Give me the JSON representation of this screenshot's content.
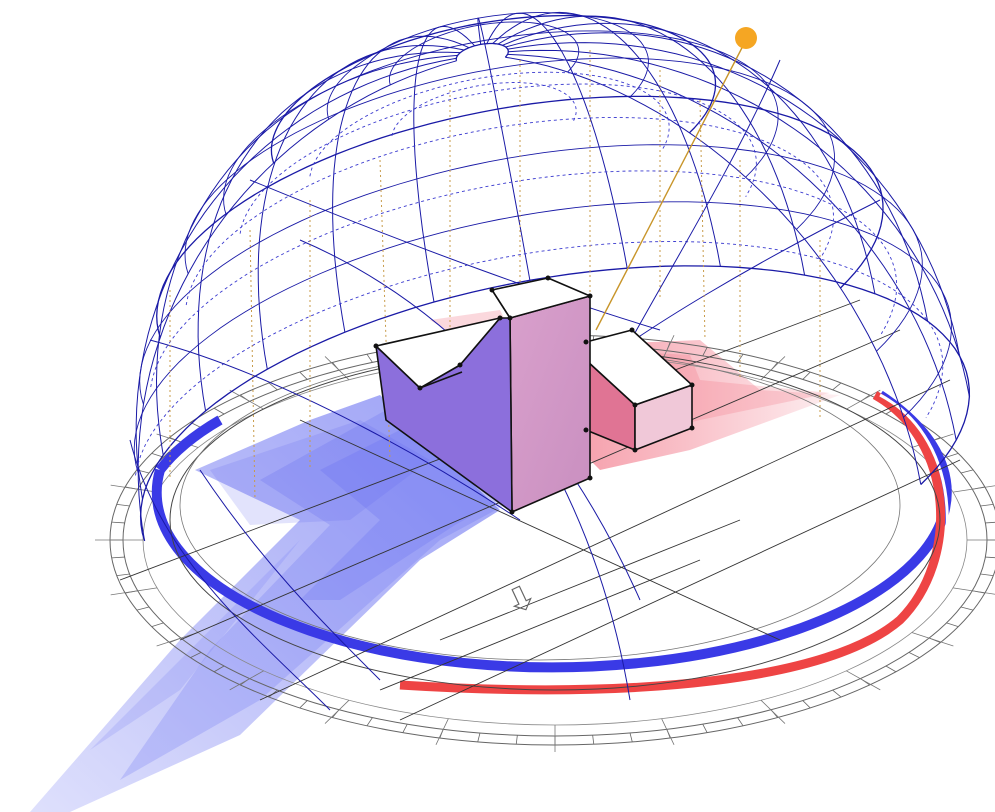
{
  "colors": {
    "background": "#ffffff",
    "sky_dome_grid": "#1a1aa6",
    "dashed_guides": "#3a3acf",
    "sun": "#f5a623",
    "sun_ray": "#c8952a",
    "projection_lines": "#c89b4a",
    "compass_ring": "#555555",
    "winter_path_band": "#3a3ae6",
    "summer_path_band": "#ee4444",
    "building_blue": "#8c6fdc",
    "building_pink": "#d496c6",
    "building_red": "#e07494",
    "shadow_blue": "#5c64f0",
    "shadow_red": "#f06478",
    "outline": "#111111"
  },
  "icons": {
    "sun": "sun-marker-icon",
    "north_arrow": "north-arrow-icon"
  }
}
